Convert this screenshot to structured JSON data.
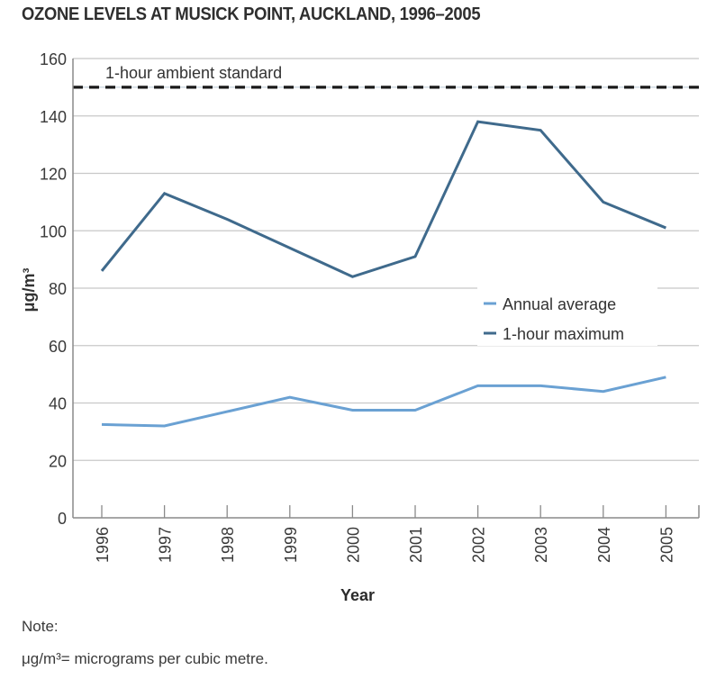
{
  "title": "OZONE LEVELS AT MUSICK POINT, AUCKLAND, 1996–2005",
  "note": {
    "heading": "Note:",
    "text": "μg/m³= micrograms per cubic metre."
  },
  "colors": {
    "annual_average": "#6aa1d3",
    "one_hour_maximum": "#3f6a8c",
    "standard": "#1a1a1a",
    "grid": "#c8c8c8",
    "axis": "#8a8a8a"
  },
  "chart_data": {
    "type": "line",
    "title": "OZONE LEVELS AT MUSICK POINT, AUCKLAND, 1996–2005",
    "xlabel": "Year",
    "ylabel": "μg/m³",
    "ylim": [
      0,
      160
    ],
    "yticks": [
      0,
      20,
      40,
      60,
      80,
      100,
      120,
      140,
      160
    ],
    "categories": [
      "1996",
      "1997",
      "1998",
      "1999",
      "2000",
      "2001",
      "2002",
      "2003",
      "2004",
      "2005"
    ],
    "series": [
      {
        "name": "Annual average",
        "values": [
          32.5,
          32,
          37,
          42,
          37.5,
          37.5,
          46,
          46,
          44,
          49
        ]
      },
      {
        "name": "1-hour maximum",
        "values": [
          86,
          113,
          104,
          94,
          84,
          91,
          138,
          135,
          110,
          101
        ]
      }
    ],
    "reference_lines": [
      {
        "label": "1-hour ambient standard",
        "value": 150,
        "style": "dashed"
      }
    ],
    "grid": true,
    "legend_position": "center-right"
  }
}
